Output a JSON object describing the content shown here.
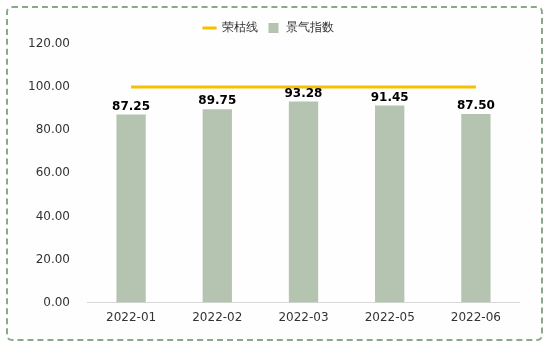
{
  "chart_data": {
    "type": "bar",
    "categories": [
      "2022-01",
      "2022-02",
      "2022-03",
      "2022-05",
      "2022-06"
    ],
    "series": [
      {
        "name": "景气指数",
        "type": "bar",
        "color": "#b5c4b1",
        "values": [
          87.25,
          89.75,
          93.28,
          91.45,
          87.5
        ],
        "value_labels": [
          "87.25",
          "89.75",
          "93.28",
          "91.45",
          "87.50"
        ],
        "data_labels": true
      },
      {
        "name": "荣枯线",
        "type": "line",
        "color": "#f5c000",
        "marker": "none",
        "line_style": "solid",
        "values": [
          100,
          100,
          100,
          100,
          100
        ]
      }
    ],
    "ylim": [
      0,
      120
    ],
    "yticks": [
      {
        "value": 0,
        "label": "0.00"
      },
      {
        "value": 20,
        "label": "20.00"
      },
      {
        "value": 40,
        "label": "40.00"
      },
      {
        "value": 60,
        "label": "60.00"
      },
      {
        "value": 80,
        "label": "80.00"
      },
      {
        "value": 100,
        "label": "100.00"
      },
      {
        "value": 120,
        "label": "120.00"
      }
    ],
    "grid": false,
    "legend": "top"
  }
}
